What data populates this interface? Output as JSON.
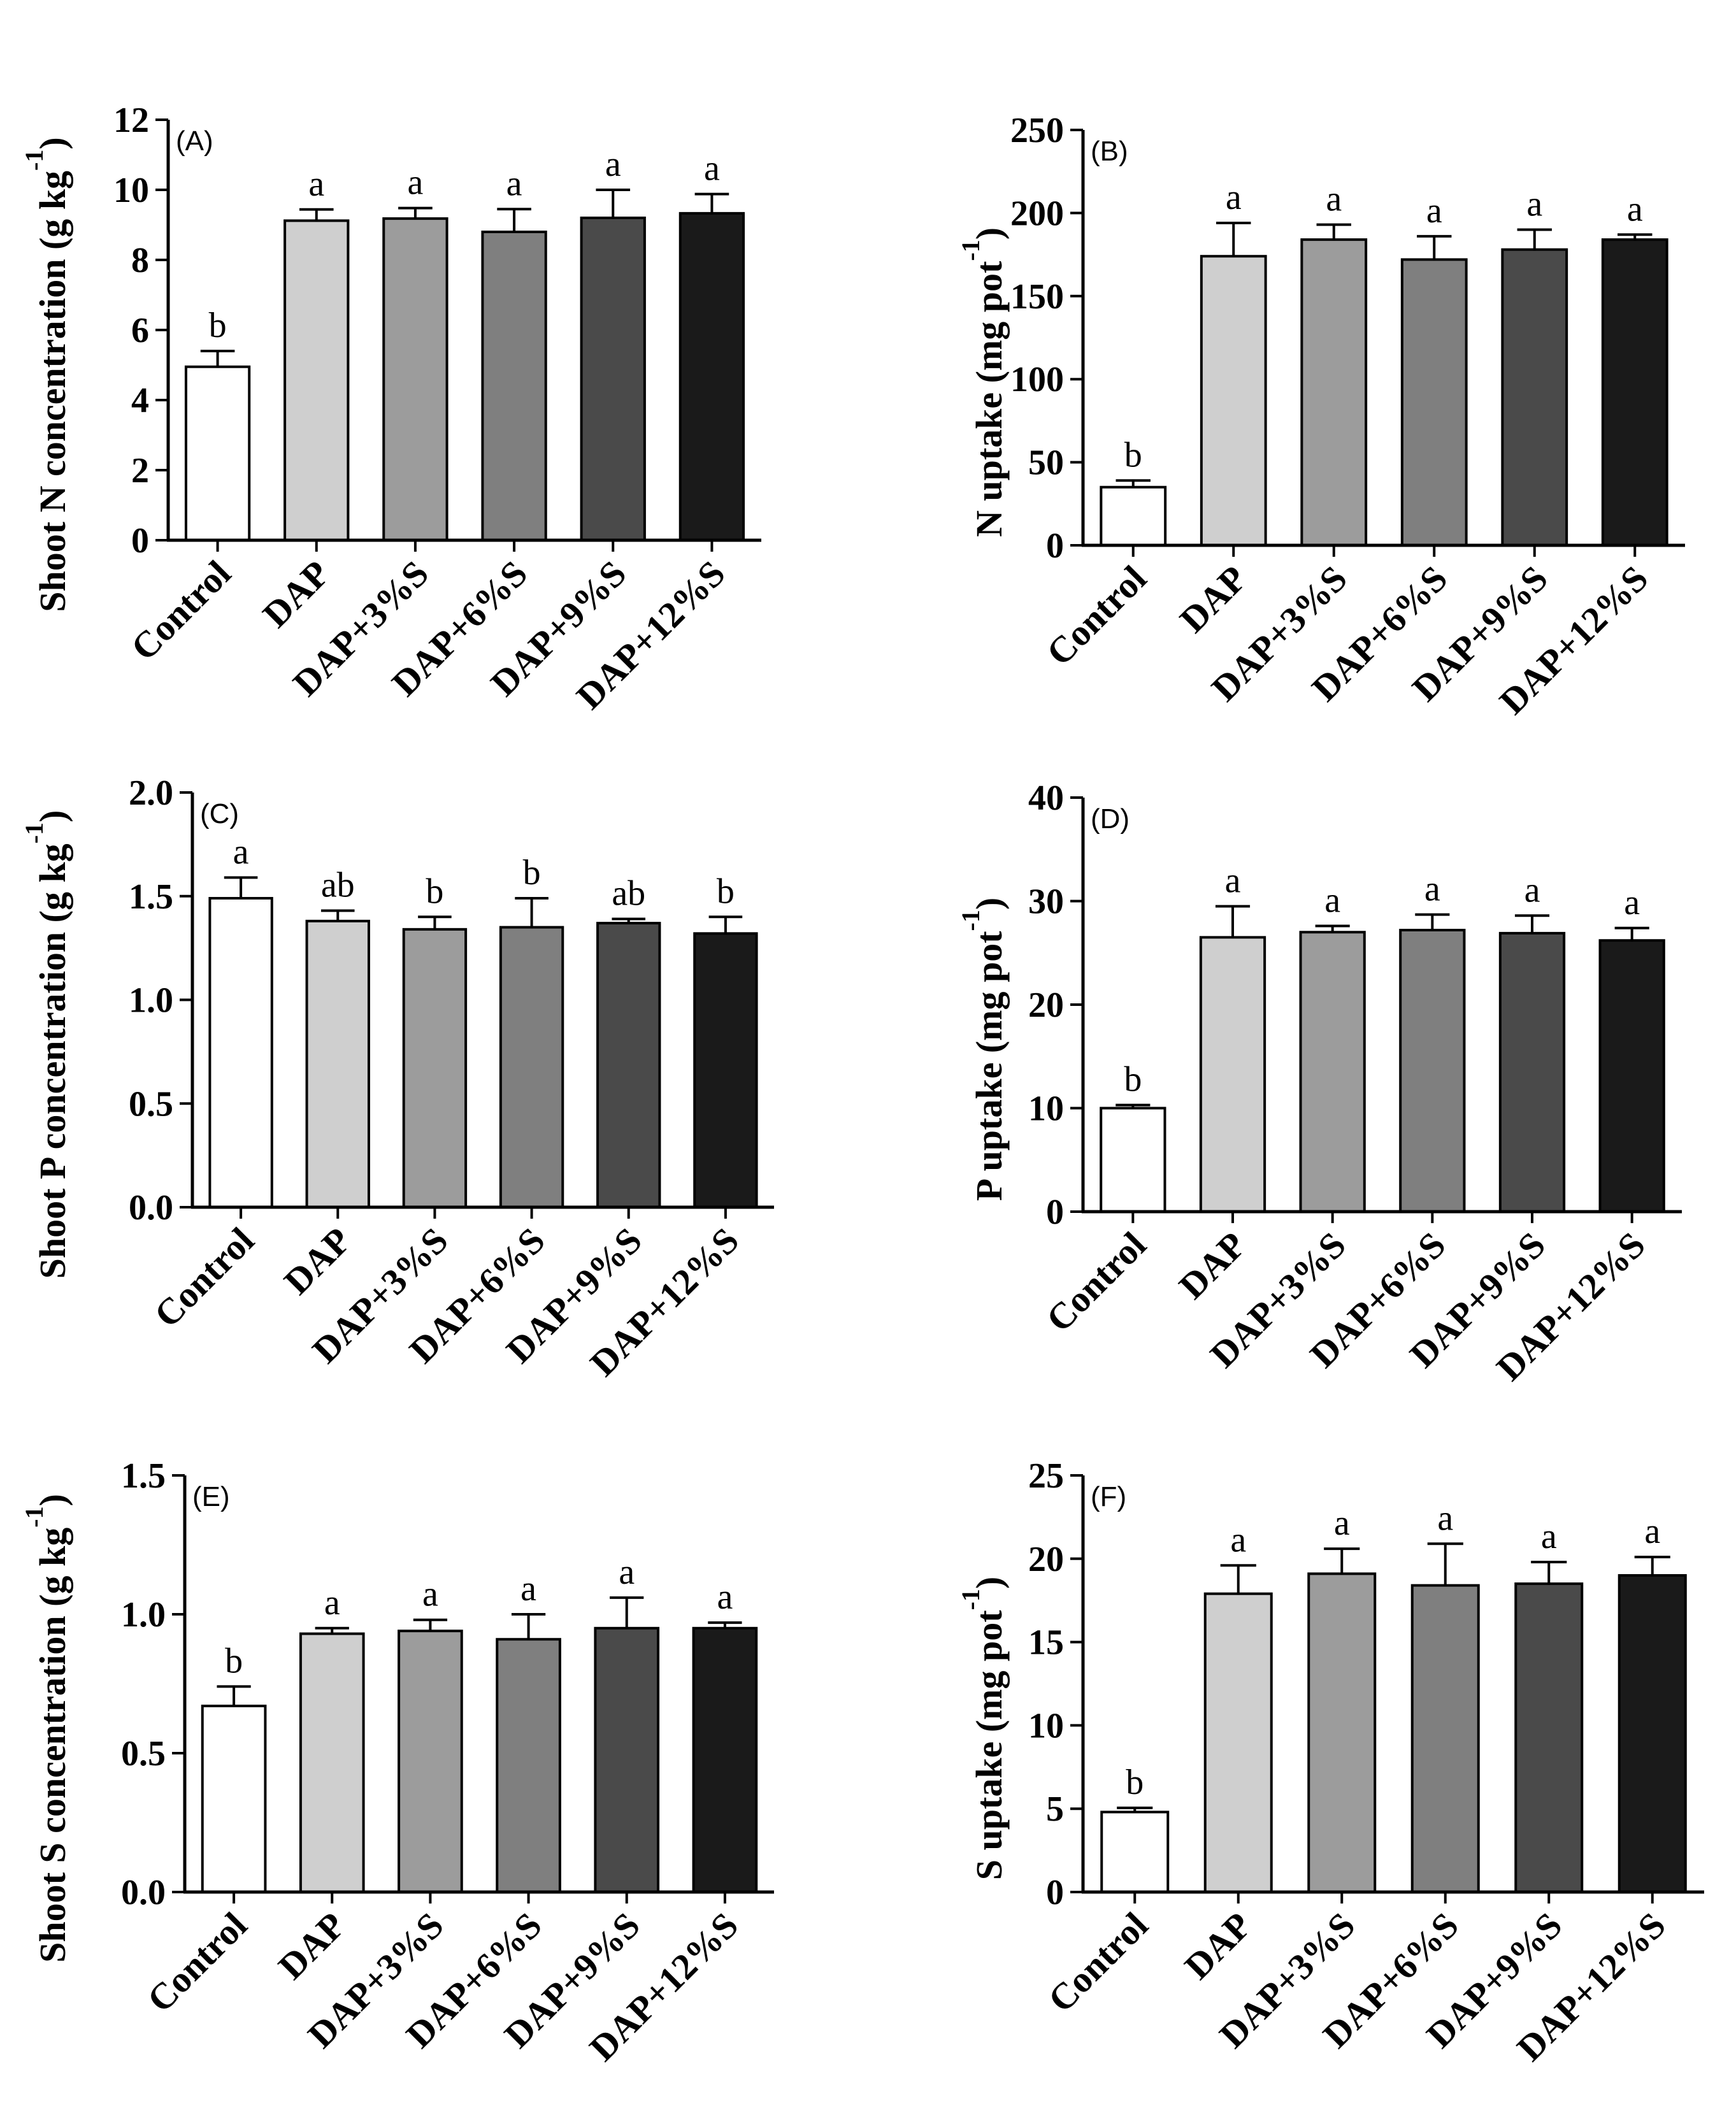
{
  "figure": {
    "bar_colors": [
      "#ffffff",
      "#cfcfcf",
      "#9c9c9c",
      "#7f7f7f",
      "#4a4a4a",
      "#1a1a1a"
    ],
    "axis_color": "#000000"
  },
  "chart_data": [
    {
      "type": "bar",
      "panel_label": "(A)",
      "categories": [
        "Control",
        "DAP",
        "DAP+3%S",
        "DAP+6%S",
        "DAP+9%S",
        "DAP+12%S"
      ],
      "values": [
        4.95,
        9.12,
        9.18,
        8.8,
        9.2,
        9.33
      ],
      "errors": [
        0.45,
        0.32,
        0.3,
        0.65,
        0.8,
        0.55
      ],
      "significance": [
        "b",
        "a",
        "a",
        "a",
        "a",
        "a"
      ],
      "ylabel": "Shoot N concentration  (g kg",
      "ylabel_sup": "-1",
      "ylabel_close": ")",
      "ylim": [
        0,
        12
      ],
      "yticks": [
        0,
        2,
        4,
        6,
        8,
        10,
        12
      ],
      "ytick_labels": [
        "0",
        "2",
        "4",
        "6",
        "8",
        "10",
        "12"
      ]
    },
    {
      "type": "bar",
      "panel_label": "(B)",
      "categories": [
        "Control",
        "DAP",
        "DAP+3%S",
        "DAP+6%S",
        "DAP+9%S",
        "DAP+12%S"
      ],
      "values": [
        35,
        174,
        184,
        172,
        178,
        184
      ],
      "errors": [
        4,
        20,
        9,
        14,
        12,
        3
      ],
      "significance": [
        "b",
        "a",
        "a",
        "a",
        "a",
        "a"
      ],
      "ylabel": "N uptake (mg pot",
      "ylabel_sup": "-1",
      "ylabel_close": ")",
      "ylim": [
        0,
        250
      ],
      "yticks": [
        0,
        50,
        100,
        150,
        200,
        250
      ],
      "ytick_labels": [
        "0",
        "50",
        "100",
        "150",
        "200",
        "250"
      ]
    },
    {
      "type": "bar",
      "panel_label": "(C)",
      "categories": [
        "Control",
        "DAP",
        "DAP+3%S",
        "DAP+6%S",
        "DAP+9%S",
        "DAP+12%S"
      ],
      "values": [
        1.49,
        1.38,
        1.34,
        1.35,
        1.37,
        1.32
      ],
      "errors": [
        0.1,
        0.05,
        0.06,
        0.14,
        0.02,
        0.08
      ],
      "significance": [
        "a",
        "ab",
        "b",
        "b",
        "ab",
        "b"
      ],
      "ylabel": "Shoot P concentration (g kg",
      "ylabel_sup": "-1",
      "ylabel_close": ")",
      "ylim": [
        0,
        2
      ],
      "yticks": [
        0,
        0.5,
        1,
        1.5,
        2
      ],
      "ytick_labels": [
        "0.0",
        "0.5",
        "1.0",
        "1.5",
        "2.0"
      ]
    },
    {
      "type": "bar",
      "panel_label": "(D)",
      "categories": [
        "Control",
        "DAP",
        "DAP+3%S",
        "DAP+6%S",
        "DAP+9%S",
        "DAP+12%S"
      ],
      "values": [
        10,
        26.5,
        27,
        27.2,
        26.9,
        26.2
      ],
      "errors": [
        0.3,
        3,
        0.6,
        1.5,
        1.7,
        1.2
      ],
      "significance": [
        "b",
        "a",
        "a",
        "a",
        "a",
        "a"
      ],
      "ylabel": "P uptake (mg pot",
      "ylabel_sup": "-1",
      "ylabel_close": ")",
      "ylim": [
        0,
        40
      ],
      "yticks": [
        0,
        10,
        20,
        30,
        40
      ],
      "ytick_labels": [
        "0",
        "10",
        "20",
        "30",
        "40"
      ]
    },
    {
      "type": "bar",
      "panel_label": "(E)",
      "categories": [
        "Control",
        "DAP",
        "DAP+3%S",
        "DAP+6%S",
        "DAP+9%S",
        "DAP+12%S"
      ],
      "values": [
        0.67,
        0.93,
        0.94,
        0.91,
        0.95,
        0.95
      ],
      "errors": [
        0.07,
        0.02,
        0.04,
        0.09,
        0.11,
        0.02
      ],
      "significance": [
        "b",
        "a",
        "a",
        "a",
        "a",
        "a"
      ],
      "ylabel": "Shoot S concentration (g kg",
      "ylabel_sup": "-1",
      "ylabel_close": ")",
      "ylim": [
        0,
        1.5
      ],
      "yticks": [
        0,
        0.5,
        1,
        1.5
      ],
      "ytick_labels": [
        "0.0",
        "0.5",
        "1.0",
        "1.5"
      ]
    },
    {
      "type": "bar",
      "panel_label": "(F)",
      "categories": [
        "Control",
        "DAP",
        "DAP+3%S",
        "DAP+6%S",
        "DAP+9%S",
        "DAP+12%S"
      ],
      "values": [
        4.8,
        17.9,
        19.1,
        18.4,
        18.5,
        19
      ],
      "errors": [
        0.25,
        1.7,
        1.5,
        2.5,
        1.3,
        1.1
      ],
      "significance": [
        "b",
        "a",
        "a",
        "a",
        "a",
        "a"
      ],
      "ylabel": "S uptake (mg pot",
      "ylabel_sup": "-1",
      "ylabel_close": ")",
      "ylim": [
        0,
        25
      ],
      "yticks": [
        0,
        5,
        10,
        15,
        20,
        25
      ],
      "ytick_labels": [
        "0",
        "5",
        "10",
        "15",
        "20",
        "25"
      ]
    }
  ]
}
